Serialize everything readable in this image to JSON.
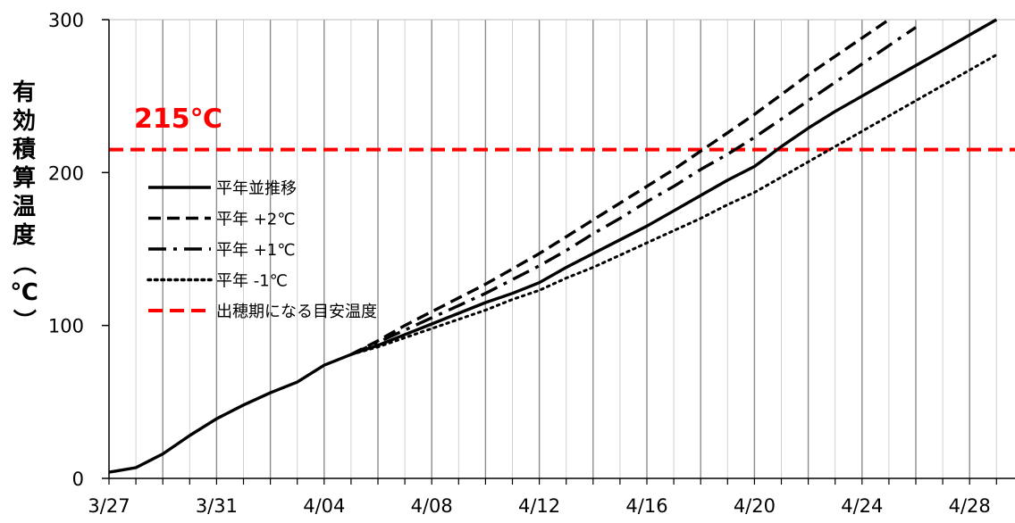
{
  "chart_data": {
    "type": "line",
    "ylabel": "有効積算温度（℃）",
    "ylim": [
      0,
      300
    ],
    "yticks": [
      0,
      100,
      200,
      300
    ],
    "x_start": "3/27",
    "x_end": "4/29",
    "xtick_labels": [
      "3/27",
      "3/31",
      "4/04",
      "4/08",
      "4/12",
      "4/16",
      "4/20",
      "4/24",
      "4/28"
    ],
    "grid": "vertical",
    "reference_line": {
      "value": 215,
      "label": "215℃",
      "color": "#ff0000",
      "style": "dashed"
    },
    "legend_position": "upper-left",
    "legend": [
      {
        "label": "平年並推移",
        "style": "solid",
        "color": "#000000"
      },
      {
        "label": "平年 +2℃",
        "style": "dashed",
        "color": "#000000"
      },
      {
        "label": "平年 +1℃",
        "style": "dashdot",
        "color": "#000000"
      },
      {
        "label": "平年 -1℃",
        "style": "dotted",
        "color": "#000000"
      },
      {
        "label": "出穂期になる目安温度",
        "style": "dashed",
        "color": "#ff0000"
      }
    ],
    "observed": {
      "x": [
        "3/27",
        "3/28",
        "3/29",
        "3/30",
        "3/31",
        "4/01",
        "4/02",
        "4/03",
        "4/04",
        "4/05"
      ],
      "y": [
        4,
        7,
        16,
        28,
        39,
        48,
        56,
        63,
        74,
        81
      ]
    },
    "series": [
      {
        "name": "平年並推移",
        "style": "solid",
        "color": "#000000",
        "x": [
          "4/05",
          "4/06",
          "4/07",
          "4/08",
          "4/09",
          "4/10",
          "4/11",
          "4/12",
          "4/13",
          "4/14",
          "4/15",
          "4/16",
          "4/17",
          "4/18",
          "4/19",
          "4/20",
          "4/21",
          "4/22",
          "4/23",
          "4/24",
          "4/25",
          "4/26",
          "4/27",
          "4/28",
          "4/29"
        ],
        "y": [
          81,
          87,
          94,
          101,
          108,
          115,
          121,
          128,
          138,
          147,
          156,
          165,
          175,
          185,
          195,
          204,
          217,
          229,
          240,
          250,
          260,
          270,
          280,
          290,
          300
        ]
      },
      {
        "name": "平年 +2℃",
        "style": "dashed",
        "color": "#000000",
        "x": [
          "4/05",
          "4/06",
          "4/07",
          "4/08",
          "4/09",
          "4/10",
          "4/11",
          "4/12",
          "4/13",
          "4/14",
          "4/15",
          "4/16",
          "4/17",
          "4/18",
          "4/19",
          "4/20",
          "4/21",
          "4/22",
          "4/23",
          "4/24",
          "4/25"
        ],
        "y": [
          81,
          90,
          100,
          109,
          118,
          127,
          137,
          147,
          158,
          169,
          180,
          191,
          202,
          214,
          226,
          238,
          251,
          264,
          276,
          288,
          300
        ]
      },
      {
        "name": "平年 +1℃",
        "style": "dashdot",
        "color": "#000000",
        "x": [
          "4/05",
          "4/06",
          "4/07",
          "4/08",
          "4/09",
          "4/10",
          "4/11",
          "4/12",
          "4/13",
          "4/14",
          "4/15",
          "4/16",
          "4/17",
          "4/18",
          "4/19",
          "4/20",
          "4/21",
          "4/22",
          "4/23",
          "4/24",
          "4/25",
          "4/26"
        ],
        "y": [
          81,
          89,
          97,
          105,
          113,
          121,
          130,
          139,
          149,
          160,
          170,
          181,
          191,
          202,
          212,
          223,
          235,
          247,
          259,
          271,
          283,
          295
        ]
      },
      {
        "name": "平年 -1℃",
        "style": "dotted",
        "color": "#000000",
        "x": [
          "4/05",
          "4/06",
          "4/07",
          "4/08",
          "4/09",
          "4/10",
          "4/11",
          "4/12",
          "4/13",
          "4/14",
          "4/15",
          "4/16",
          "4/17",
          "4/18",
          "4/19",
          "4/20",
          "4/21",
          "4/22",
          "4/23",
          "4/24",
          "4/25",
          "4/26",
          "4/27",
          "4/28",
          "4/29"
        ],
        "y": [
          81,
          86,
          92,
          98,
          104,
          110,
          117,
          123,
          131,
          138,
          146,
          154,
          162,
          170,
          179,
          187,
          197,
          207,
          217,
          227,
          237,
          247,
          257,
          267,
          277
        ]
      }
    ]
  }
}
